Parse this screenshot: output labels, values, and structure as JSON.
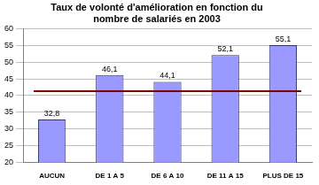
{
  "chart_data": {
    "type": "bar",
    "title": [
      "Taux de volonté d'amélioration en fonction du",
      "nombre de salariés en 2003"
    ],
    "categories": [
      "AUCUN",
      "DE 1 A 5",
      "DE 6 A 10",
      "DE 11 A 15",
      "PLUS DE 15"
    ],
    "values": [
      32.8,
      46.1,
      44.1,
      52.1,
      55.1
    ],
    "value_labels": [
      "32,8",
      "46,1",
      "44,1",
      "52,1",
      "55,1"
    ],
    "data_labels": true,
    "color": "#9999ff",
    "reference_line": 41.3,
    "ylim": [
      20,
      60
    ],
    "yticks": [
      20,
      25,
      30,
      35,
      40,
      45,
      50,
      55,
      60
    ],
    "grid": true
  }
}
